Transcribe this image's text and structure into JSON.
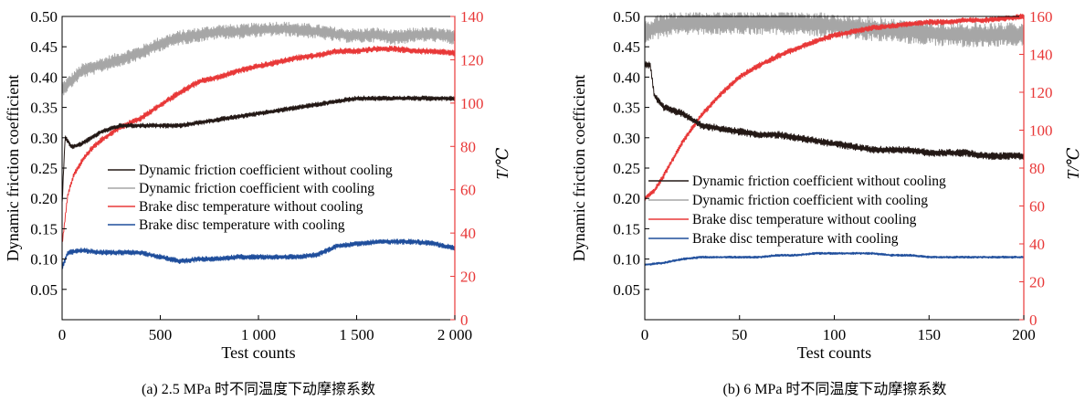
{
  "charts": [
    {
      "type": "line",
      "caption": "(a) 2.5 MPa 时不同温度下动摩擦系数",
      "xlabel": "Test counts",
      "ylabel_left": "Dynamic friction coefficient",
      "ylabel_right": "T/℃",
      "xlim": [
        0,
        2000
      ],
      "ylim_left": [
        0,
        0.5
      ],
      "ylim_right": [
        0,
        140
      ],
      "x_ticks": [
        0,
        500,
        1000,
        1500,
        2000
      ],
      "x_tick_labels": [
        "0",
        "500",
        "1 000",
        "1 500",
        "2 000"
      ],
      "y_left_ticks": [
        0.05,
        0.1,
        0.15,
        0.2,
        0.25,
        0.3,
        0.35,
        0.4,
        0.45,
        0.5
      ],
      "y_left_tick_labels": [
        "0.05",
        "0.10",
        "0.15",
        "0.20",
        "0.25",
        "0.30",
        "0.35",
        "0.40",
        "0.45",
        "0.50"
      ],
      "y_right_ticks": [
        0,
        20,
        40,
        60,
        80,
        100,
        120,
        140
      ],
      "y_right_tick_labels": [
        "0",
        "20",
        "40",
        "60",
        "80",
        "100",
        "120",
        "140"
      ],
      "x_zero_label": "0",
      "grid": false,
      "legend": "center-right",
      "noise": [
        0.004,
        0.012,
        1.4,
        1.2
      ],
      "series": [
        {
          "name": "Dynamic friction coefficient without cooling",
          "color": "#231815",
          "axis": "left",
          "x": [
            0,
            15,
            50,
            100,
            150,
            200,
            300,
            400,
            500,
            600,
            700,
            800,
            900,
            1000,
            1100,
            1200,
            1300,
            1400,
            1500,
            1600,
            1700,
            1800,
            1900,
            2000
          ],
          "y": [
            0.19,
            0.3,
            0.285,
            0.29,
            0.3,
            0.31,
            0.32,
            0.32,
            0.32,
            0.32,
            0.325,
            0.33,
            0.335,
            0.34,
            0.345,
            0.35,
            0.355,
            0.36,
            0.365,
            0.365,
            0.365,
            0.365,
            0.365,
            0.365
          ]
        },
        {
          "name": "Dynamic friction coefficient with cooling",
          "color": "#a6a6a6",
          "axis": "left",
          "x": [
            0,
            50,
            100,
            200,
            300,
            400,
            500,
            600,
            700,
            800,
            900,
            1000,
            1100,
            1200,
            1300,
            1400,
            1500,
            1600,
            1700,
            1800,
            1900,
            2000
          ],
          "y": [
            0.38,
            0.395,
            0.41,
            0.42,
            0.43,
            0.44,
            0.455,
            0.465,
            0.47,
            0.475,
            0.475,
            0.478,
            0.48,
            0.478,
            0.475,
            0.47,
            0.468,
            0.47,
            0.465,
            0.47,
            0.47,
            0.465
          ]
        },
        {
          "name": "Brake disc temperature without cooling",
          "color": "#e83838",
          "axis": "right",
          "x": [
            0,
            30,
            60,
            100,
            150,
            200,
            250,
            300,
            400,
            500,
            600,
            700,
            800,
            900,
            1000,
            1100,
            1200,
            1300,
            1400,
            1500,
            1600,
            1700,
            1800,
            1900,
            2000
          ],
          "y": [
            35,
            58,
            67,
            73,
            79,
            83,
            86,
            89,
            93,
            99,
            105,
            110,
            112,
            115,
            117,
            119,
            121,
            122,
            124,
            124,
            125,
            125,
            124,
            124,
            123
          ]
        },
        {
          "name": "Brake disc temperature with cooling",
          "color": "#1f4e9c",
          "axis": "right",
          "x": [
            0,
            30,
            100,
            200,
            300,
            400,
            500,
            600,
            700,
            800,
            900,
            1000,
            1100,
            1200,
            1300,
            1400,
            1500,
            1600,
            1700,
            1800,
            1900,
            2000
          ],
          "y": [
            24,
            31,
            32,
            31,
            31,
            31,
            29,
            27,
            28,
            28,
            29,
            29,
            29,
            29,
            30,
            34,
            35,
            36,
            36,
            36,
            35,
            33
          ]
        }
      ]
    },
    {
      "type": "line",
      "caption": "(b) 6 MPa 时不同温度下动摩擦系数",
      "xlabel": "Test counts",
      "ylabel_left": "Dynamic friction coefficient",
      "ylabel_right": "T/℃",
      "xlim": [
        0,
        200
      ],
      "ylim_left": [
        0,
        0.5
      ],
      "ylim_right": [
        0,
        160
      ],
      "x_ticks": [
        0,
        50,
        100,
        150,
        200
      ],
      "x_tick_labels": [
        "0",
        "50",
        "100",
        "150",
        "200"
      ],
      "y_left_ticks": [
        0.05,
        0.1,
        0.15,
        0.2,
        0.25,
        0.3,
        0.35,
        0.4,
        0.45,
        0.5
      ],
      "y_left_tick_labels": [
        "0.05",
        "0.10",
        "0.15",
        "0.20",
        "0.25",
        "0.30",
        "0.35",
        "0.40",
        "0.45",
        "0.50"
      ],
      "y_right_ticks": [
        0,
        20,
        40,
        60,
        80,
        100,
        120,
        140,
        160
      ],
      "y_right_tick_labels": [
        "0",
        "20",
        "40",
        "60",
        "80",
        "100",
        "120",
        "140",
        "160"
      ],
      "x_zero_label": "0",
      "grid": false,
      "legend": "center",
      "noise": [
        0.006,
        0.02,
        1.5,
        0.6
      ],
      "series": [
        {
          "name": "Dynamic friction coefficient without cooling",
          "color": "#231815",
          "axis": "left",
          "x": [
            0,
            3,
            5,
            10,
            20,
            30,
            40,
            50,
            60,
            70,
            80,
            90,
            100,
            110,
            120,
            130,
            140,
            150,
            160,
            170,
            180,
            190,
            200
          ],
          "y": [
            0.42,
            0.42,
            0.37,
            0.35,
            0.34,
            0.32,
            0.315,
            0.31,
            0.305,
            0.305,
            0.3,
            0.295,
            0.29,
            0.285,
            0.28,
            0.28,
            0.28,
            0.275,
            0.275,
            0.275,
            0.27,
            0.27,
            0.27
          ]
        },
        {
          "name": "Dynamic friction coefficient with cooling",
          "color": "#a6a6a6",
          "axis": "left",
          "x": [
            0,
            10,
            20,
            40,
            60,
            80,
            100,
            120,
            140,
            160,
            180,
            200
          ],
          "y": [
            0.475,
            0.485,
            0.49,
            0.49,
            0.49,
            0.49,
            0.485,
            0.48,
            0.475,
            0.47,
            0.47,
            0.47
          ]
        },
        {
          "name": "Brake disc temperature without cooling",
          "color": "#e83838",
          "axis": "right",
          "x": [
            0,
            5,
            10,
            20,
            30,
            40,
            50,
            60,
            70,
            80,
            90,
            100,
            110,
            120,
            130,
            140,
            150,
            160,
            170,
            180,
            190,
            200
          ],
          "y": [
            64,
            68,
            76,
            94,
            108,
            119,
            128,
            134,
            139,
            143,
            147,
            150,
            152,
            154,
            155,
            156,
            157,
            157,
            158,
            158,
            159,
            160
          ]
        },
        {
          "name": "Brake disc temperature with cooling",
          "color": "#1f4e9c",
          "axis": "right",
          "x": [
            0,
            10,
            20,
            30,
            40,
            50,
            60,
            70,
            80,
            90,
            100,
            110,
            120,
            130,
            140,
            150,
            160,
            170,
            180,
            190,
            200
          ],
          "y": [
            29,
            30,
            32,
            33,
            33,
            33,
            33,
            34,
            34,
            35,
            35,
            35,
            35,
            34,
            34,
            33,
            33,
            33,
            33,
            33,
            33
          ]
        }
      ]
    }
  ]
}
